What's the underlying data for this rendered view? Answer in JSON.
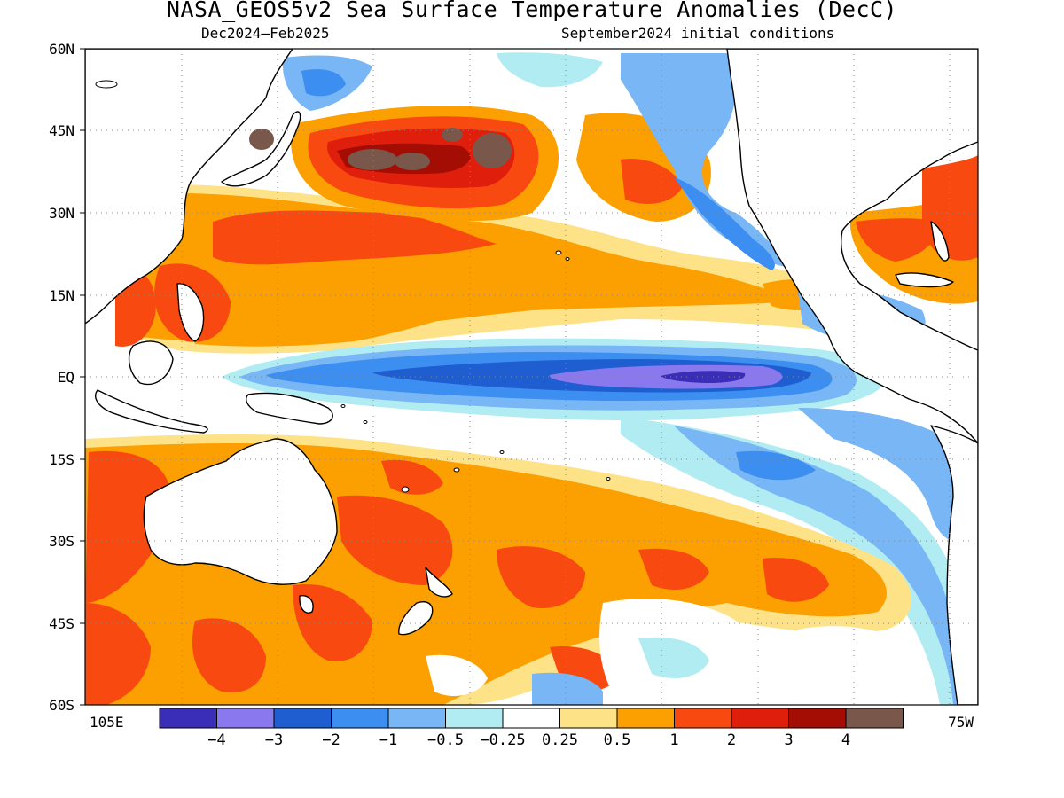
{
  "title": "NASA_GEOS5v2 Sea Surface Temperature Anomalies (DecC)",
  "subtitle_left": "Dec2024–Feb2025",
  "subtitle_right": "September2024 initial conditions",
  "map": {
    "lon_range": [
      "105E",
      "75W"
    ],
    "lat_range": [
      "60S",
      "60N"
    ],
    "lat_labels": [
      "60N",
      "45N",
      "30N",
      "15N",
      "EQ",
      "15S",
      "30S",
      "45S",
      "60S"
    ],
    "lon_left_label": "105E",
    "lon_right_label": "75W",
    "gridlines": "dotted",
    "land": "white with black coastlines"
  },
  "colorbar": {
    "colors": [
      "#3a2db8",
      "#8a78ee",
      "#1e5ed0",
      "#3c8ef0",
      "#78b6f5",
      "#b0ecf2",
      "#ffffff",
      "#fde287",
      "#fba000",
      "#f84a10",
      "#e01e0c",
      "#a40d04",
      "#7a574b"
    ],
    "labels": [
      "−4",
      "−3",
      "−2",
      "−1",
      "−0.5",
      "−0.25",
      "0.25",
      "0.5",
      "1",
      "2",
      "3",
      "4"
    ]
  }
}
